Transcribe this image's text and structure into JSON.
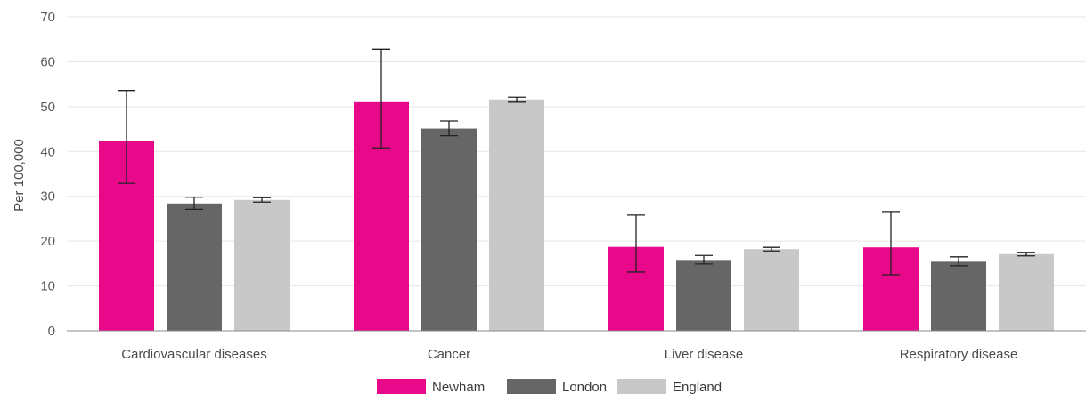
{
  "chart_data": {
    "type": "bar",
    "title": "",
    "xlabel": "",
    "ylabel": "Per 100,000",
    "ylim": [
      0,
      70
    ],
    "yticks": [
      0,
      10,
      20,
      30,
      40,
      50,
      60,
      70
    ],
    "grid": true,
    "legend_position": "bottom",
    "categories": [
      "Cardiovascular diseases",
      "Cancer",
      "Liver disease",
      "Respiratory disease"
    ],
    "series": [
      {
        "name": "Newham",
        "color": "#e8088a",
        "values": [
          42.3,
          51.0,
          18.7,
          18.6
        ],
        "error_low": [
          32.9,
          40.8,
          13.1,
          12.5
        ],
        "error_high": [
          53.6,
          62.8,
          25.8,
          26.6
        ]
      },
      {
        "name": "London",
        "color": "#666666",
        "values": [
          28.4,
          45.1,
          15.8,
          15.4
        ],
        "error_low": [
          27.1,
          43.5,
          14.9,
          14.5
        ],
        "error_high": [
          29.8,
          46.8,
          16.8,
          16.5
        ]
      },
      {
        "name": "England",
        "color": "#c8c8c8",
        "values": [
          29.2,
          51.6,
          18.2,
          17.1
        ],
        "error_low": [
          28.7,
          51.0,
          17.8,
          16.7
        ],
        "error_high": [
          29.7,
          52.1,
          18.6,
          17.5
        ]
      }
    ]
  }
}
